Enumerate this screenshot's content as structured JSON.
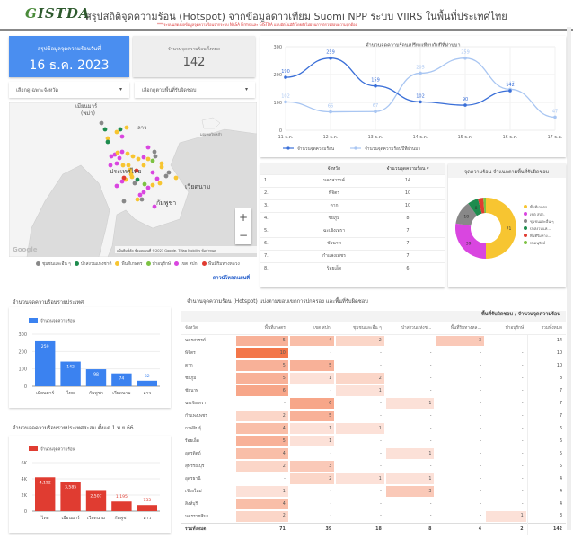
{
  "header": {
    "logo_prefix": "G",
    "logo_rest": "ISTDA",
    "title": "สรุปสถิติจุดความร้อน (Hotspot) จากข้อมูลดาวเทียม Suomi NPP ระบบ VIIRS  ในพื้นที่ประเทศไทย",
    "subtitle": "*** ระบบแสดงผลข้อมูลจุดความร้อนจากระบบ NASA Firms และ GISTDA แบบอัตโนมัติ โดยยังไม่ผ่านการตรวจสอบความถูกต้อง"
  },
  "summary": {
    "date_label": "สรุปข้อมูลจุดความร้อนวันที่",
    "date_value": "16 ธ.ค. 2023",
    "total_label": "จำนวนจุดความร้อนทั้งหมด",
    "total_value": "142"
  },
  "filters": {
    "province_placeholder": "เลือกดูเฉพาะจังหวัด",
    "area_placeholder": "เลือกดูตามพื้นที่รับผิดชอบ"
  },
  "map": {
    "labels": {
      "myanmar": "เมียนมาร์",
      "myanmar2": "(พม่า)",
      "laos": "ลาว",
      "thailand": "ประเทศไทย",
      "vietnam": "เวียดนาม",
      "cambodia": "กัมพูชา",
      "hainan": "มณฑลไหหลำ",
      "google": "Google"
    },
    "attribution": "แป้นพิมพ์ลัด   ข้อมูลแผนที่ ©2023 Google, TMap Mobility   ข้อกำหนด",
    "zoom_in": "+",
    "zoom_out": "−",
    "legend": [
      {
        "label": "ชุมชนและอื่น ๆ",
        "color": "#888888"
      },
      {
        "label": "ป่าสงวนแห่งชาติ",
        "color": "#1e8c4e"
      },
      {
        "label": "พื้นที่เกษตร",
        "color": "#f7c531"
      },
      {
        "label": "ป่าอนุรักษ์",
        "color": "#7cc242"
      },
      {
        "label": "เขต สปก.",
        "color": "#d946e0"
      },
      {
        "label": "พื้นที่ริมทางหลวง",
        "color": "#e03c31"
      }
    ],
    "fullscreen_link": "ดาวน์โหลดแผนที่"
  },
  "line_chart": {
    "chart_data": {
      "type": "line",
      "title": "จำนวนจุดความร้อนเปรียบเทียบกับปีที่ผ่านมา",
      "categories": [
        "11 ธ.ค.",
        "12 ธ.ค.",
        "13 ธ.ค.",
        "14 ธ.ค.",
        "15 ธ.ค.",
        "16 ธ.ค.",
        "17 ธ.ค."
      ],
      "ylim": [
        0,
        300
      ],
      "yticks": [
        "0",
        "100",
        "200",
        "300"
      ],
      "series": [
        {
          "name": "จำนวนจุดความร้อน",
          "color": "#3a6fd8",
          "values": [
            190,
            259,
            159,
            102,
            90,
            142,
            null
          ]
        },
        {
          "name": "จำนวนจุดความร้อนปีที่ผ่านมา",
          "color": "#a9c6f2",
          "values": [
            102,
            66,
            67,
            205,
            259,
            147,
            47
          ]
        }
      ],
      "legend": "bottom"
    }
  },
  "province_table": {
    "headers": [
      "จังหวัด",
      "จำนวนจุดความร้อน ▾"
    ],
    "rows": [
      {
        "rank": "1.",
        "name": "นครสวรรค์",
        "count": "14"
      },
      {
        "rank": "2.",
        "name": "พิจิตร",
        "count": "10"
      },
      {
        "rank": "3.",
        "name": "ตาก",
        "count": "10"
      },
      {
        "rank": "4.",
        "name": "ชัยภูมิ",
        "count": "8"
      },
      {
        "rank": "5.",
        "name": "ฉะเชิงเทรา",
        "count": "7"
      },
      {
        "rank": "6.",
        "name": "ชัยนาท",
        "count": "7"
      },
      {
        "rank": "7.",
        "name": "กำแพงเพชร",
        "count": "7"
      },
      {
        "rank": "8.",
        "name": "ร้อยเอ็ด",
        "count": "6"
      }
    ]
  },
  "donut": {
    "chart_data": {
      "type": "pie",
      "title": "จุดความร้อน จำแนกตามพื้นที่รับผิดชอบ",
      "slices": [
        {
          "label": "พื้นที่เกษตร",
          "value": 71,
          "color": "#f7c531"
        },
        {
          "label": "เขต สปก.",
          "value": 39,
          "color": "#d946e0"
        },
        {
          "label": "ชุมชนและอื่น ๆ",
          "value": 18,
          "color": "#888888"
        },
        {
          "label": "ป่าสงวนแห่...",
          "value": 8,
          "color": "#1e8c4e"
        },
        {
          "label": "พื้นที่ริมทาง...",
          "value": 4,
          "color": "#e03c31"
        },
        {
          "label": "ป่าอนุรักษ์",
          "value": 2,
          "color": "#7cc242"
        }
      ],
      "legend": "right"
    }
  },
  "country_bar": {
    "section_title": "จำนวนจุดความร้อนรายประเทศ",
    "chart_data": {
      "type": "bar",
      "legend_label": "จำนวนจุดความร้อน",
      "color": "#3b82f0",
      "categories": [
        "เมียนมาร์",
        "ไทย",
        "กัมพูชา",
        "เวียดนาม",
        "ลาว"
      ],
      "values": [
        259,
        142,
        98,
        74,
        32
      ],
      "ylim": [
        0,
        300
      ],
      "yticks": [
        "0",
        "100",
        "200",
        "300"
      ]
    }
  },
  "cumulative_bar": {
    "section_title": "จำนวนจุดความร้อนรายประเทศสะสม ตั้งแต่ 1 พ.ย 66",
    "chart_data": {
      "type": "bar",
      "legend_label": "จำนวนจุดความร้อน",
      "color": "#e03c31",
      "categories": [
        "ไทย",
        "เมียนมาร์",
        "เวียดนาม",
        "กัมพูชา",
        "ลาว"
      ],
      "values": [
        4192,
        3585,
        2507,
        1195,
        755
      ],
      "value_labels": [
        "4,192",
        "3,585",
        "2,507",
        "1,195",
        "755"
      ],
      "ylim": [
        0,
        6000
      ],
      "yticks": [
        "0",
        "2K",
        "4K",
        "6K"
      ]
    }
  },
  "matrix": {
    "section_title": "จำนวนจุดความร้อน (Hotspot) แบ่งตามขอบเขตการปกครอง และพื้นที่รับผิดชอบ",
    "top_header": "พื้นที่รับผิดชอบ / จำนวนจุดความร้อน",
    "columns": [
      "จังหวัด",
      "พื้นที่เกษตร",
      "เขต สปก.",
      "ชุมชนและอื่น ๆ",
      "ป่าสงวนแห่งช...",
      "พื้นที่ริมทางหล...",
      "ป่าอนุรักษ์",
      "รวมทั้งหมด"
    ],
    "rows": [
      [
        "นครสวรรค์",
        "5",
        "4",
        "2",
        "-",
        "3",
        "-",
        "14"
      ],
      [
        "พิจิตร",
        "10",
        "-",
        "-",
        "-",
        "-",
        "-",
        "10"
      ],
      [
        "ตาก",
        "5",
        "5",
        "-",
        "-",
        "-",
        "-",
        "10"
      ],
      [
        "ชัยภูมิ",
        "5",
        "1",
        "2",
        "-",
        "-",
        "-",
        "8"
      ],
      [
        "ชัยนาท",
        "6",
        "-",
        "1",
        "-",
        "-",
        "-",
        "7"
      ],
      [
        "ฉะเชิงเทรา",
        "-",
        "6",
        "-",
        "1",
        "-",
        "-",
        "7"
      ],
      [
        "กำแพงเพชร",
        "2",
        "5",
        "-",
        "-",
        "-",
        "-",
        "7"
      ],
      [
        "กาฬสินธุ์",
        "4",
        "1",
        "1",
        "-",
        "-",
        "-",
        "6"
      ],
      [
        "ร้อยเอ็ด",
        "5",
        "1",
        "-",
        "-",
        "-",
        "-",
        "6"
      ],
      [
        "อุตรดิตถ์",
        "4",
        "-",
        "-",
        "1",
        "-",
        "-",
        "5"
      ],
      [
        "สุพรรณบุรี",
        "2",
        "3",
        "-",
        "-",
        "-",
        "-",
        "5"
      ],
      [
        "อุดรธานี",
        "-",
        "2",
        "1",
        "1",
        "-",
        "-",
        "4"
      ],
      [
        "เชียงใหม่",
        "1",
        "-",
        "-",
        "3",
        "-",
        "-",
        "4"
      ],
      [
        "สิงห์บุรี",
        "4",
        "-",
        "-",
        "-",
        "-",
        "-",
        "4"
      ],
      [
        "นครราชสีมา",
        "2",
        "-",
        "-",
        "-",
        "-",
        "1",
        "3"
      ]
    ],
    "total_row": [
      "รวมทั้งหมด",
      "71",
      "39",
      "18",
      "8",
      "4",
      "2",
      "142"
    ],
    "heat_color": "#f26a3a"
  }
}
